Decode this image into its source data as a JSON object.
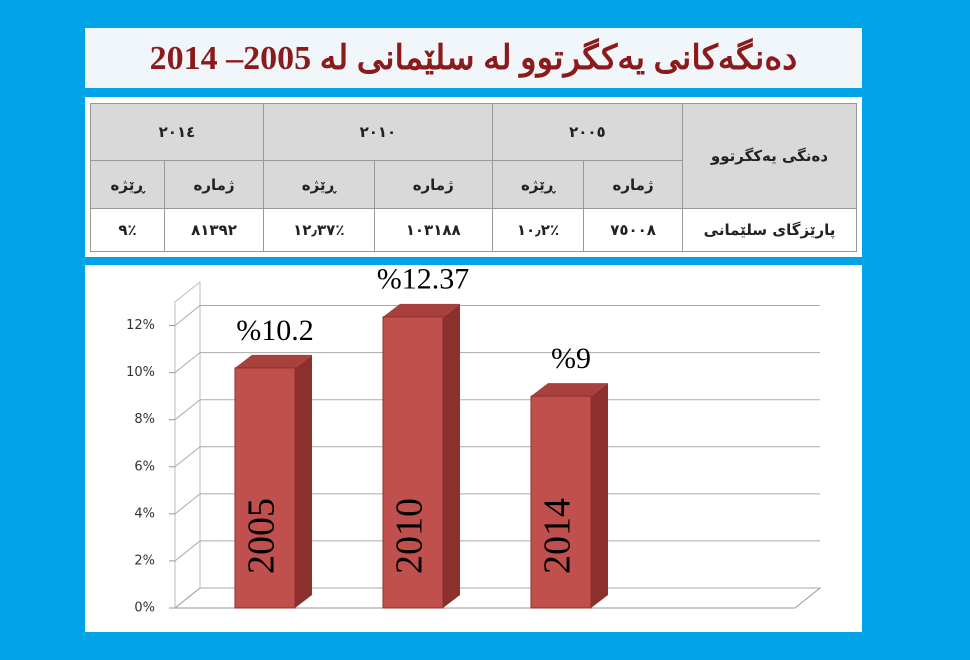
{
  "header": {
    "title": "دەنگەکانی یەکگرتوو لە سلێمانی لە 2005– 2014"
  },
  "table": {
    "header": [
      "دەنگی یەکگرتوو",
      "٢٠٠٥",
      "٢٠١٠",
      "٢٠١٤"
    ],
    "subheader": [
      "ژمارە",
      "ڕێژە",
      "ژمارە",
      "ڕێژە",
      "ژمارە",
      "ڕێژە"
    ],
    "rows": [
      [
        "پارێزگای سلێمانی",
        "٧٥٠٠٨",
        "٪١٠٫٢",
        "١٠٣١٨٨",
        "٪١٢٫٣٧",
        "٨١٣٩٢",
        "٪٩"
      ]
    ]
  },
  "chart_data": {
    "type": "bar",
    "categories": [
      "2005",
      "2010",
      "2014"
    ],
    "values": [
      10.2,
      12.37,
      9
    ],
    "value_labels": [
      "%10.2",
      "%12.37",
      "%9"
    ],
    "color": "#c0504d",
    "ylim": [
      0,
      13
    ],
    "yticks": [
      {
        "value": 0,
        "label": "0%"
      },
      {
        "value": 2,
        "label": "2%"
      },
      {
        "value": 4,
        "label": "4%"
      },
      {
        "value": 6,
        "label": "6%"
      },
      {
        "value": 8,
        "label": "8%"
      },
      {
        "value": 10,
        "label": "10%"
      },
      {
        "value": 12,
        "label": "12%"
      }
    ],
    "grid": true
  }
}
